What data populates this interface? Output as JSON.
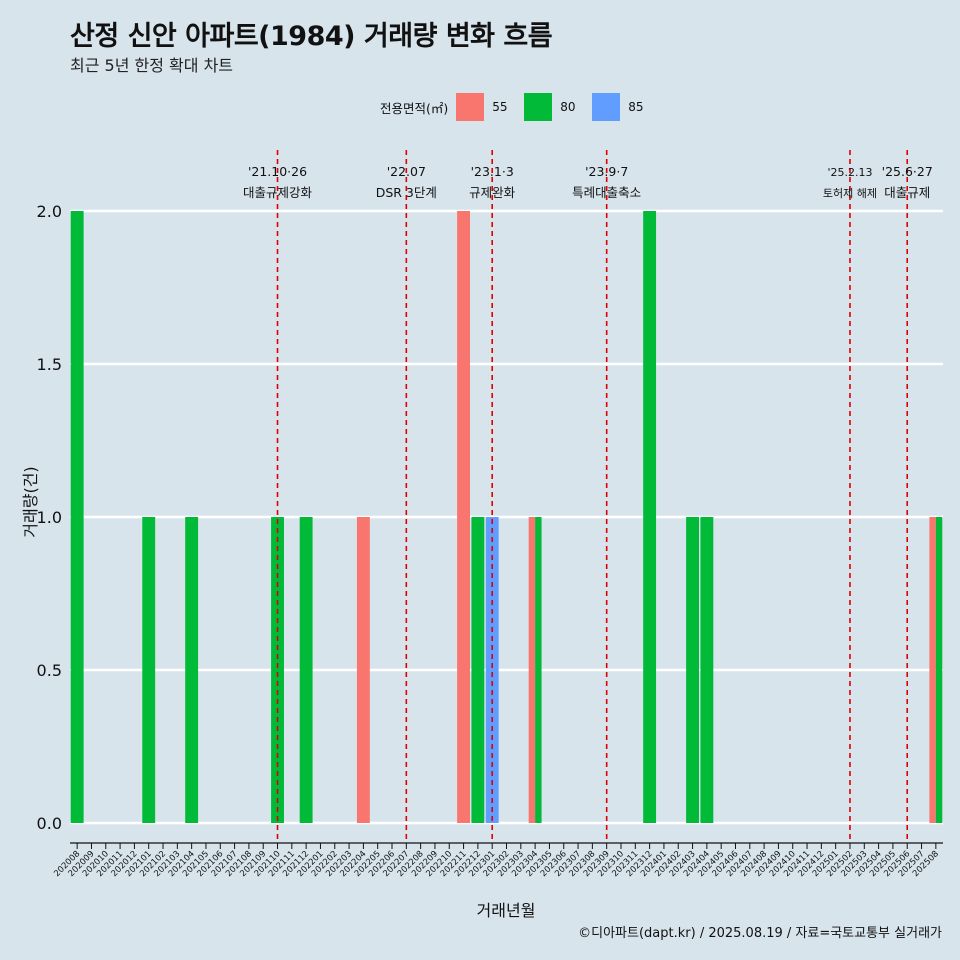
{
  "title": "산정 신안 아파트(1984) 거래량 변화 흐름",
  "subtitle": "최근 5년 한정 확대 차트",
  "caption": "©디아파트(dapt.kr) / 2025.08.19 / 자료=국토교통부 실거래가",
  "legend": {
    "title": "전용면적(㎡)",
    "items": [
      {
        "label": "55",
        "color": "#f8766d"
      },
      {
        "label": "80",
        "color": "#00ba38"
      },
      {
        "label": "85",
        "color": "#619cff"
      }
    ]
  },
  "chart_data": {
    "type": "bar",
    "xlabel": "거래년월",
    "ylabel": "거래량(건)",
    "ylim": [
      0,
      2
    ],
    "yticks": [
      "0.0",
      "0.5",
      "1.0",
      "1.5",
      "2.0"
    ],
    "grid": true,
    "legend_position": "top",
    "categories": [
      "202008",
      "202009",
      "202010",
      "202011",
      "202012",
      "202101",
      "202102",
      "202103",
      "202104",
      "202105",
      "202106",
      "202107",
      "202108",
      "202109",
      "202110",
      "202111",
      "202112",
      "202201",
      "202202",
      "202203",
      "202204",
      "202205",
      "202206",
      "202207",
      "202208",
      "202209",
      "202210",
      "202211",
      "202212",
      "202301",
      "202302",
      "202303",
      "202304",
      "202305",
      "202306",
      "202307",
      "202308",
      "202309",
      "202310",
      "202311",
      "202312",
      "202401",
      "202402",
      "202403",
      "202404",
      "202405",
      "202406",
      "202407",
      "202408",
      "202409",
      "202410",
      "202411",
      "202412",
      "202501",
      "202502",
      "202503",
      "202504",
      "202505",
      "202506",
      "202507",
      "202508"
    ],
    "series": [
      {
        "name": "55",
        "color": "#f8766d",
        "values": [
          0,
          0,
          0,
          0,
          0,
          0,
          0,
          0,
          0,
          0,
          0,
          0,
          0,
          0,
          0,
          0,
          0,
          0,
          0,
          0,
          1,
          0,
          0,
          0,
          0,
          0,
          0,
          2,
          0,
          0,
          0,
          0,
          1,
          0,
          0,
          0,
          0,
          0,
          0,
          0,
          0,
          0,
          0,
          0,
          0,
          0,
          0,
          0,
          0,
          0,
          0,
          0,
          0,
          0,
          0,
          0,
          0,
          0,
          0,
          0,
          1
        ]
      },
      {
        "name": "80",
        "color": "#00ba38",
        "values": [
          2,
          0,
          0,
          0,
          0,
          1,
          0,
          0,
          1,
          0,
          0,
          0,
          0,
          0,
          1,
          0,
          1,
          0,
          0,
          0,
          0,
          0,
          0,
          0,
          0,
          0,
          0,
          0,
          1,
          0,
          0,
          0,
          1,
          0,
          0,
          0,
          0,
          0,
          0,
          0,
          2,
          0,
          0,
          1,
          1,
          0,
          0,
          0,
          0,
          0,
          0,
          0,
          0,
          0,
          0,
          0,
          0,
          0,
          0,
          0,
          1
        ]
      },
      {
        "name": "85",
        "color": "#619cff",
        "values": [
          0,
          0,
          0,
          0,
          0,
          0,
          0,
          0,
          0,
          0,
          0,
          0,
          0,
          0,
          0,
          0,
          0,
          0,
          0,
          0,
          0,
          0,
          0,
          0,
          0,
          0,
          0,
          0,
          0,
          1,
          0,
          0,
          0,
          0,
          0,
          0,
          0,
          0,
          0,
          0,
          0,
          0,
          0,
          0,
          0,
          0,
          0,
          0,
          0,
          0,
          0,
          0,
          0,
          0,
          0,
          0,
          0,
          0,
          0,
          0,
          0
        ]
      }
    ],
    "annotations": [
      {
        "x": "202110",
        "date": "'21.10·26",
        "text": "대출규제강화"
      },
      {
        "x": "202207",
        "date": "'22.07",
        "text": "DSR 3단계"
      },
      {
        "x": "202301",
        "date": "'23.1·3",
        "text": "규제완화"
      },
      {
        "x": "202309",
        "date": "'23.9·7",
        "text": "특례대출축소"
      },
      {
        "x": "202502",
        "date": "'25.2.13",
        "text": "토허제 해제"
      },
      {
        "x": "202506",
        "date": "'25.6·27",
        "text": "대출규제"
      }
    ]
  }
}
